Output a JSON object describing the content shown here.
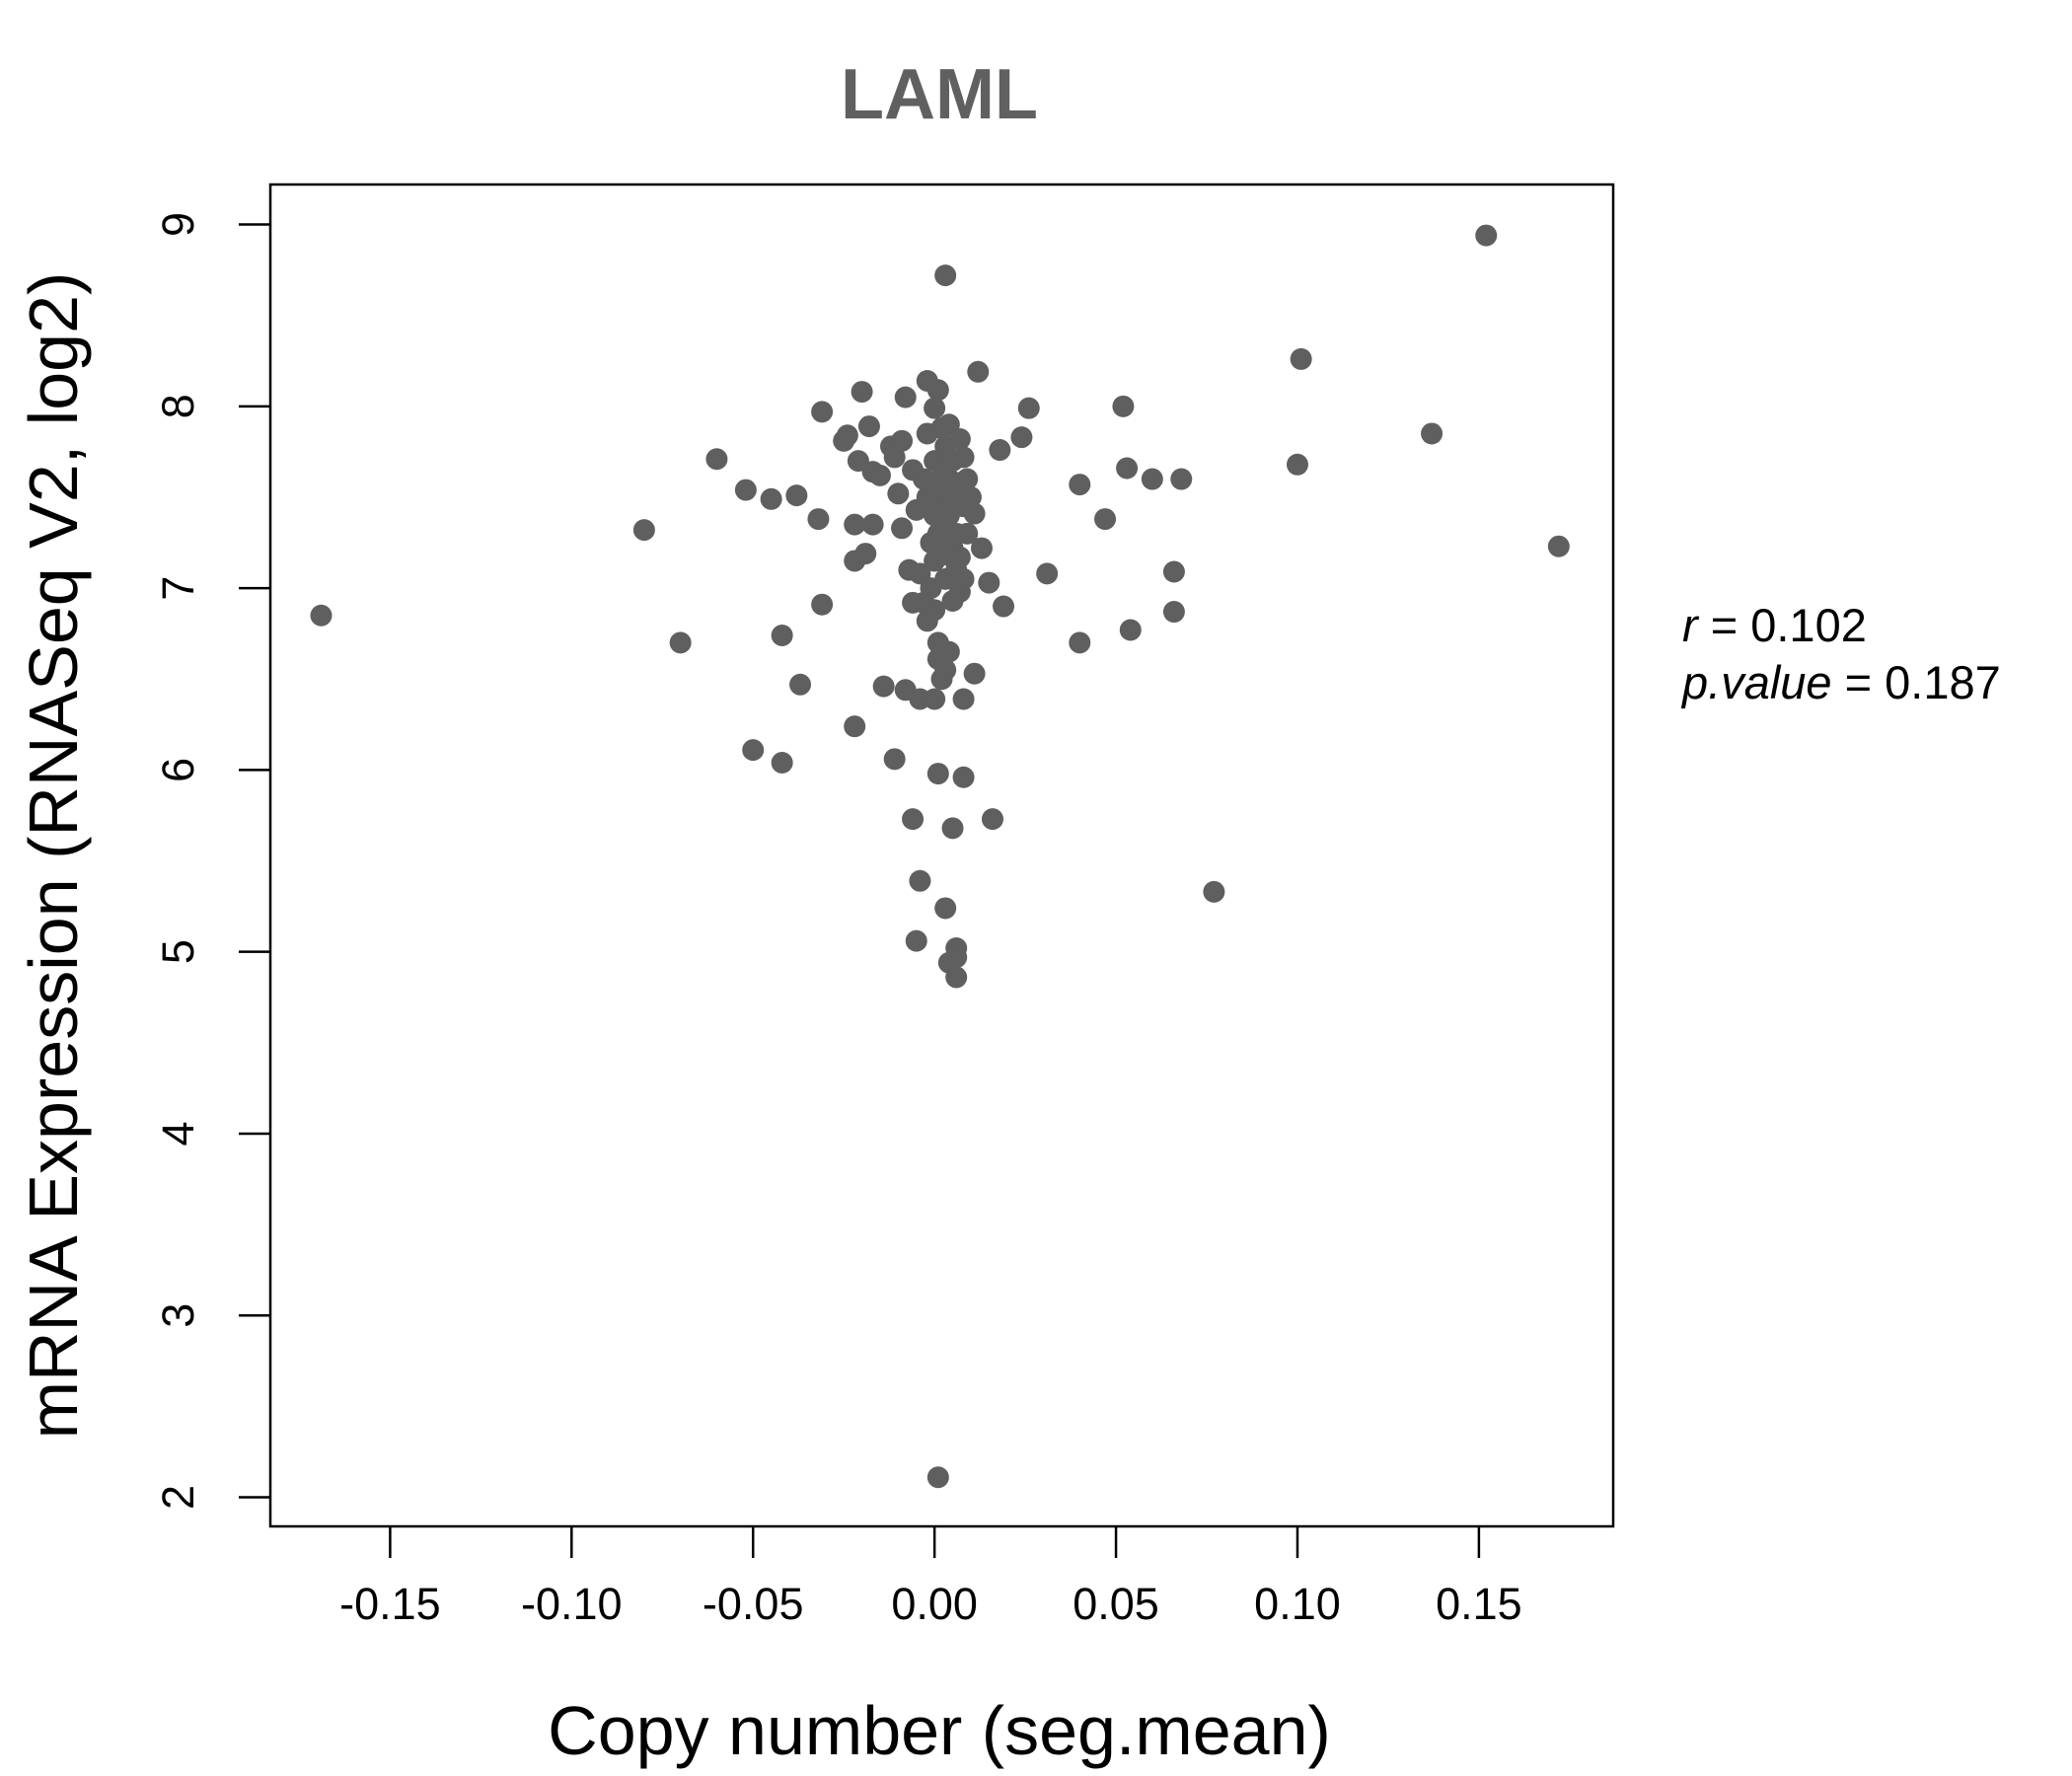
{
  "chart_data": {
    "type": "scatter",
    "title": "LAML",
    "xlabel": "Copy number (seg.mean)",
    "ylabel": "mRNA Expression (RNASeq V2, log2)",
    "xlim": [
      -0.183,
      0.187
    ],
    "ylim": [
      1.84,
      9.22
    ],
    "xticks": [
      -0.15,
      -0.1,
      -0.05,
      0.0,
      0.05,
      0.1,
      0.15
    ],
    "xtick_labels": [
      "-0.15",
      "-0.10",
      "-0.05",
      "0.00",
      "0.05",
      "0.10",
      "0.15"
    ],
    "yticks": [
      2,
      3,
      4,
      5,
      6,
      7,
      8,
      9
    ],
    "ytick_labels": [
      "2",
      "3",
      "4",
      "5",
      "6",
      "7",
      "8",
      "9"
    ],
    "grid": false,
    "point_color": "#5f5f5f",
    "stats": {
      "r_label": "r",
      "r_value": "0.102",
      "p_label": "p.value",
      "p_value": "0.187"
    },
    "points": [
      [
        -0.169,
        6.85
      ],
      [
        -0.08,
        7.32
      ],
      [
        -0.07,
        6.7
      ],
      [
        -0.06,
        7.71
      ],
      [
        -0.052,
        7.54
      ],
      [
        -0.05,
        6.11
      ],
      [
        -0.045,
        7.49
      ],
      [
        -0.042,
        6.74
      ],
      [
        -0.042,
        6.04
      ],
      [
        -0.038,
        7.51
      ],
      [
        -0.037,
        6.47
      ],
      [
        -0.032,
        7.38
      ],
      [
        -0.031,
        7.97
      ],
      [
        -0.031,
        6.91
      ],
      [
        -0.025,
        7.81
      ],
      [
        -0.024,
        7.84
      ],
      [
        -0.022,
        7.35
      ],
      [
        -0.022,
        7.15
      ],
      [
        -0.022,
        6.24
      ],
      [
        -0.021,
        7.7
      ],
      [
        -0.02,
        8.08
      ],
      [
        -0.019,
        7.19
      ],
      [
        -0.018,
        7.89
      ],
      [
        -0.017,
        7.64
      ],
      [
        -0.017,
        7.35
      ],
      [
        -0.015,
        7.62
      ],
      [
        -0.014,
        6.46
      ],
      [
        -0.012,
        7.78
      ],
      [
        -0.011,
        7.72
      ],
      [
        -0.011,
        6.06
      ],
      [
        -0.01,
        7.52
      ],
      [
        -0.009,
        7.81
      ],
      [
        -0.009,
        7.33
      ],
      [
        -0.008,
        8.05
      ],
      [
        -0.008,
        6.44
      ],
      [
        -0.007,
        7.1
      ],
      [
        -0.006,
        7.65
      ],
      [
        -0.006,
        6.92
      ],
      [
        -0.006,
        5.73
      ],
      [
        -0.005,
        7.43
      ],
      [
        -0.005,
        5.06
      ],
      [
        -0.004,
        7.08
      ],
      [
        -0.004,
        6.39
      ],
      [
        -0.004,
        5.39
      ],
      [
        -0.003,
        7.6
      ],
      [
        -0.003,
        6.92
      ],
      [
        -0.002,
        8.14
      ],
      [
        -0.002,
        7.85
      ],
      [
        -0.002,
        7.5
      ],
      [
        -0.002,
        6.82
      ],
      [
        -0.001,
        7.25
      ],
      [
        -0.001,
        7.0
      ],
      [
        0.0,
        7.99
      ],
      [
        0.0,
        7.7
      ],
      [
        0.0,
        7.4
      ],
      [
        0.0,
        7.15
      ],
      [
        0.0,
        6.88
      ],
      [
        0.0,
        6.39
      ],
      [
        0.001,
        8.09
      ],
      [
        0.001,
        7.56
      ],
      [
        0.001,
        7.3
      ],
      [
        0.001,
        6.7
      ],
      [
        0.001,
        6.61
      ],
      [
        0.001,
        5.98
      ],
      [
        0.001,
        2.11
      ],
      [
        0.002,
        7.88
      ],
      [
        0.002,
        7.62
      ],
      [
        0.002,
        7.45
      ],
      [
        0.002,
        7.2
      ],
      [
        0.002,
        6.5
      ],
      [
        0.003,
        8.72
      ],
      [
        0.003,
        7.78
      ],
      [
        0.003,
        7.55
      ],
      [
        0.003,
        7.35
      ],
      [
        0.003,
        7.05
      ],
      [
        0.003,
        6.55
      ],
      [
        0.003,
        5.24
      ],
      [
        0.004,
        7.9
      ],
      [
        0.004,
        7.6
      ],
      [
        0.004,
        7.4
      ],
      [
        0.004,
        7.18
      ],
      [
        0.004,
        6.65
      ],
      [
        0.004,
        4.94
      ],
      [
        0.005,
        7.7
      ],
      [
        0.005,
        7.48
      ],
      [
        0.005,
        7.22
      ],
      [
        0.005,
        6.93
      ],
      [
        0.005,
        5.68
      ],
      [
        0.006,
        7.58
      ],
      [
        0.006,
        7.3
      ],
      [
        0.006,
        7.1
      ],
      [
        0.006,
        5.02
      ],
      [
        0.006,
        4.97
      ],
      [
        0.006,
        4.86
      ],
      [
        0.007,
        7.82
      ],
      [
        0.007,
        7.5
      ],
      [
        0.007,
        7.17
      ],
      [
        0.007,
        6.98
      ],
      [
        0.008,
        7.72
      ],
      [
        0.008,
        7.45
      ],
      [
        0.008,
        7.05
      ],
      [
        0.008,
        6.39
      ],
      [
        0.008,
        5.96
      ],
      [
        0.009,
        7.6
      ],
      [
        0.009,
        7.3
      ],
      [
        0.01,
        7.5
      ],
      [
        0.011,
        7.41
      ],
      [
        0.011,
        6.53
      ],
      [
        0.012,
        8.19
      ],
      [
        0.013,
        7.22
      ],
      [
        0.015,
        7.03
      ],
      [
        0.016,
        5.73
      ],
      [
        0.018,
        7.76
      ],
      [
        0.019,
        6.9
      ],
      [
        0.024,
        7.83
      ],
      [
        0.026,
        7.99
      ],
      [
        0.031,
        7.08
      ],
      [
        0.04,
        7.57
      ],
      [
        0.04,
        6.7
      ],
      [
        0.047,
        7.38
      ],
      [
        0.052,
        8.0
      ],
      [
        0.053,
        7.66
      ],
      [
        0.054,
        6.77
      ],
      [
        0.06,
        7.6
      ],
      [
        0.066,
        7.09
      ],
      [
        0.066,
        6.87
      ],
      [
        0.068,
        7.6
      ],
      [
        0.077,
        5.33
      ],
      [
        0.1,
        7.68
      ],
      [
        0.101,
        8.26
      ],
      [
        0.137,
        7.85
      ],
      [
        0.152,
        8.94
      ],
      [
        0.172,
        7.23
      ]
    ]
  }
}
